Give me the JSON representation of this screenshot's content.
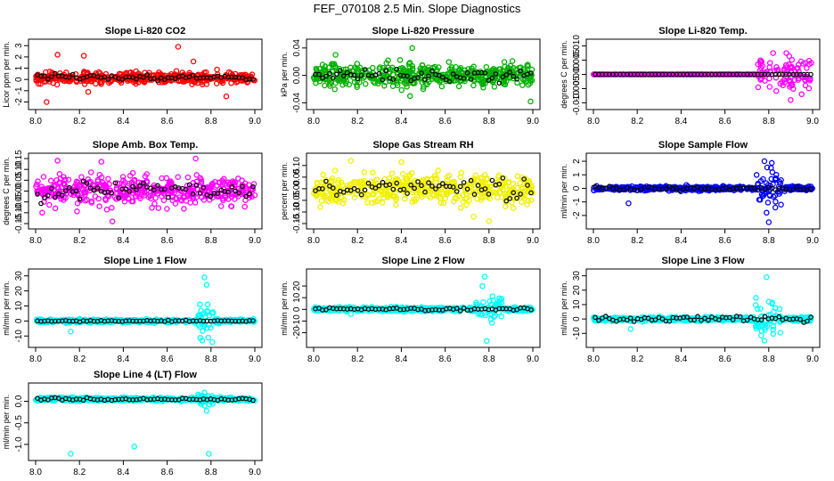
{
  "figure": {
    "title": "FEF_070108  2.5 Min. Slope Diagnostics"
  },
  "chart_data": [
    {
      "type": "scatter",
      "title": "Slope Li-820 CO2",
      "ylabel": "Licor ppm per min.",
      "xlim": [
        8.0,
        9.0
      ],
      "ylim": [
        -2.2,
        3.1
      ],
      "x_ticks": [
        "8.0",
        "8.2",
        "8.4",
        "8.6",
        "8.8",
        "9.0"
      ],
      "y_ticks": [
        -2,
        -1,
        0,
        1,
        2,
        3
      ],
      "y_tick_labels": [
        "-2",
        "-1",
        "0",
        "1",
        "2",
        "3"
      ],
      "series": [
        {
          "name": "all",
          "color": "#ff0000",
          "base": 0.15,
          "spread": 0.35,
          "outliers": [
            [
              8.1,
              2.2
            ],
            [
              8.72,
              1.6
            ],
            [
              8.65,
              2.9
            ],
            [
              8.05,
              -2.0
            ],
            [
              8.24,
              -1.1
            ],
            [
              8.22,
              2.1
            ],
            [
              8.87,
              -1.5
            ]
          ],
          "burst": null
        },
        {
          "name": "subset",
          "color": "#000000",
          "base": 0.15,
          "spread": 0.2
        }
      ]
    },
    {
      "type": "scatter",
      "title": "Slope Li-820 Pressure",
      "ylabel": "kPa per min.",
      "xlim": [
        8.0,
        9.0
      ],
      "ylim": [
        -0.042,
        0.045
      ],
      "x_ticks": [
        "8.0",
        "8.2",
        "8.4",
        "8.6",
        "8.8",
        "9.0"
      ],
      "y_ticks": [
        -0.04,
        0.0,
        0.04
      ],
      "y_tick_labels": [
        "-0.04",
        "0.00",
        "0.04"
      ],
      "series": [
        {
          "name": "all",
          "color": "#00b000",
          "base": 0.0,
          "spread": 0.011,
          "outliers": [
            [
              8.45,
              0.04
            ],
            [
              8.44,
              -0.03
            ],
            [
              8.99,
              -0.038
            ],
            [
              8.34,
              0.022
            ],
            [
              8.1,
              0.03
            ],
            [
              8.5,
              -0.02
            ]
          ],
          "burst": null
        },
        {
          "name": "subset",
          "color": "#000000",
          "base": 0.0,
          "spread": 0.006
        }
      ]
    },
    {
      "type": "scatter",
      "title": "Slope Li-820 Temp.",
      "ylabel": "degrees C per min.",
      "xlim": [
        8.0,
        9.0
      ],
      "ylim": [
        -0.0105,
        0.0105
      ],
      "x_ticks": [
        "8.0",
        "8.2",
        "8.4",
        "8.6",
        "8.8",
        "9.0"
      ],
      "y_ticks": [
        -0.01,
        -0.005,
        0.0,
        0.005,
        0.01
      ],
      "y_tick_labels": [
        "-0.010",
        "-0.005",
        "0.000",
        "0.005",
        "0.010"
      ],
      "series": [
        {
          "name": "all",
          "color": "#ff00ff",
          "base": 0.0,
          "spread": 0.0,
          "outliers": [
            [
              8.9,
              -0.009
            ],
            [
              8.82,
              0.0075
            ],
            [
              8.88,
              0.0075
            ],
            [
              8.95,
              -0.007
            ]
          ],
          "burst": {
            "from": 8.75,
            "to": 9.0,
            "spread": 0.004
          }
        },
        {
          "name": "subset",
          "color": "#000000",
          "base": 0.0,
          "spread": 0.0
        }
      ]
    },
    {
      "type": "scatter",
      "title": "Slope Amb. Box Temp.",
      "ylabel": "degrees C per min.",
      "xlim": [
        8.0,
        9.0
      ],
      "ylim": [
        -0.15,
        0.15
      ],
      "x_ticks": [
        "8.0",
        "8.2",
        "8.4",
        "8.6",
        "8.8",
        "9.0"
      ],
      "y_ticks": [
        -0.15,
        -0.1,
        -0.05,
        0.0,
        0.05,
        0.1,
        0.15
      ],
      "y_tick_labels": [
        "-0.15",
        "-0.10",
        "-0.05",
        "0.00",
        "0.05",
        "0.10",
        "0.15"
      ],
      "series": [
        {
          "name": "all",
          "color": "#ff00ff",
          "base": 0.0,
          "spread": 0.045,
          "outliers": [
            [
              8.35,
              -0.14
            ],
            [
              8.73,
              0.15
            ],
            [
              8.1,
              0.14
            ],
            [
              8.3,
              0.135
            ],
            [
              8.03,
              -0.1
            ]
          ],
          "burst": null
        },
        {
          "name": "subset",
          "color": "#000000",
          "base": 0.0,
          "spread": 0.03
        }
      ]
    },
    {
      "type": "scatter",
      "title": "Slope Gas Stream RH",
      "ylabel": "percent per min.",
      "xlim": [
        8.0,
        9.0
      ],
      "ylim": [
        -0.15,
        0.13
      ],
      "x_ticks": [
        "8.0",
        "8.2",
        "8.4",
        "8.6",
        "8.8",
        "9.0"
      ],
      "y_ticks": [
        -0.15,
        -0.1,
        -0.05,
        0.0,
        0.05,
        0.1
      ],
      "y_tick_labels": [
        "-0.15",
        "-0.10",
        "-0.05",
        "0.00",
        "0.05",
        "0.10"
      ],
      "series": [
        {
          "name": "all",
          "color": "#f0f000",
          "base": 0.0,
          "spread": 0.045,
          "outliers": [
            [
              8.8,
              -0.14
            ],
            [
              8.17,
              0.12
            ],
            [
              8.4,
              0.115
            ],
            [
              8.73,
              -0.12
            ]
          ],
          "burst": null
        },
        {
          "name": "subset",
          "color": "#000000",
          "base": 0.0,
          "spread": 0.035
        }
      ]
    },
    {
      "type": "scatter",
      "title": "Slope Sample Flow",
      "ylabel": "ml/min per min.",
      "xlim": [
        8.0,
        9.0
      ],
      "ylim": [
        -2.6,
        2.2
      ],
      "x_ticks": [
        "8.0",
        "8.2",
        "8.4",
        "8.6",
        "8.8",
        "9.0"
      ],
      "y_ticks": [
        -2,
        -1,
        0,
        1,
        2
      ],
      "y_tick_labels": [
        "-2",
        "-1",
        "0",
        "1",
        "2"
      ],
      "series": [
        {
          "name": "all",
          "color": "#0000ff",
          "base": 0.0,
          "spread": 0.12,
          "outliers": [
            [
              8.16,
              -1.1
            ],
            [
              8.78,
              2.0
            ],
            [
              8.8,
              -2.5
            ],
            [
              8.81,
              1.5
            ],
            [
              8.79,
              -1.8
            ]
          ],
          "burst": {
            "from": 8.74,
            "to": 8.86,
            "spread": 0.9
          }
        },
        {
          "name": "subset",
          "color": "#000000",
          "base": 0.0,
          "spread": 0.1
        }
      ]
    },
    {
      "type": "scatter",
      "title": "Slope Line 1 Flow",
      "ylabel": "ml/min per min.",
      "xlim": [
        8.0,
        9.0
      ],
      "ylim": [
        -14,
        31
      ],
      "x_ticks": [
        "8.0",
        "8.2",
        "8.4",
        "8.6",
        "8.8",
        "9.0"
      ],
      "y_ticks": [
        -10,
        0,
        10,
        20,
        30
      ],
      "y_tick_labels": [
        "-10",
        "0",
        "10",
        "20",
        "30"
      ],
      "series": [
        {
          "name": "all",
          "color": "#00ffff",
          "base": 0.0,
          "spread": 0.8,
          "outliers": [
            [
              8.77,
              29
            ],
            [
              8.78,
              24
            ],
            [
              8.76,
              -13
            ],
            [
              8.16,
              -7
            ]
          ],
          "burst": {
            "from": 8.74,
            "to": 8.82,
            "spread": 9
          }
        },
        {
          "name": "subset",
          "color": "#000000",
          "base": 0.0,
          "spread": 0.3
        }
      ]
    },
    {
      "type": "scatter",
      "title": "Slope Line 2 Flow",
      "ylabel": "ml/min per min.",
      "xlim": [
        8.0,
        9.0
      ],
      "ylim": [
        -28,
        30
      ],
      "x_ticks": [
        "8.0",
        "8.2",
        "8.4",
        "8.6",
        "8.8",
        "9.0"
      ],
      "y_ticks": [
        -20,
        -10,
        0,
        10,
        20
      ],
      "y_tick_labels": [
        "-20",
        "-10",
        "0",
        "10",
        "20"
      ],
      "series": [
        {
          "name": "all",
          "color": "#00ffff",
          "base": 0.0,
          "spread": 1.2,
          "outliers": [
            [
              8.78,
              28
            ],
            [
              8.79,
              -27
            ],
            [
              8.17,
              -4
            ],
            [
              8.77,
              20
            ]
          ],
          "burst": {
            "from": 8.74,
            "to": 8.86,
            "spread": 8
          }
        },
        {
          "name": "subset",
          "color": "#000000",
          "base": 0.0,
          "spread": 1.0
        }
      ]
    },
    {
      "type": "scatter",
      "title": "Slope Line 3 Flow",
      "ylabel": "ml/min per min.",
      "xlim": [
        8.0,
        9.0
      ],
      "ylim": [
        -16,
        31
      ],
      "x_ticks": [
        "8.0",
        "8.2",
        "8.4",
        "8.6",
        "8.8",
        "9.0"
      ],
      "y_ticks": [
        -10,
        0,
        10,
        20,
        30
      ],
      "y_tick_labels": [
        "-10",
        "0",
        "10",
        "20",
        "30"
      ],
      "series": [
        {
          "name": "all",
          "color": "#00ffff",
          "base": 0.0,
          "spread": 1.0,
          "outliers": [
            [
              8.79,
              29
            ],
            [
              8.78,
              -15
            ],
            [
              8.17,
              -7
            ],
            [
              8.8,
              12
            ]
          ],
          "burst": {
            "from": 8.74,
            "to": 8.86,
            "spread": 7
          }
        },
        {
          "name": "subset",
          "color": "#000000",
          "base": 0.0,
          "spread": 1.5
        }
      ]
    },
    {
      "type": "scatter",
      "title": "Slope Line 4 (LT) Flow",
      "ylabel": "ml/min per min.",
      "xlim": [
        8.0,
        9.0
      ],
      "ylim": [
        -1.25,
        0.3
      ],
      "x_ticks": [
        "8.0",
        "8.2",
        "8.4",
        "8.6",
        "8.8",
        "9.0"
      ],
      "y_ticks": [
        -1.0,
        -0.5,
        0.0
      ],
      "y_tick_labels": [
        "-1.0",
        "-0.5",
        "0.0"
      ],
      "series": [
        {
          "name": "all",
          "color": "#00ffff",
          "base": 0.05,
          "spread": 0.03,
          "outliers": [
            [
              8.16,
              -1.22
            ],
            [
              8.79,
              -1.22
            ],
            [
              8.45,
              -1.05
            ],
            [
              8.77,
              0.2
            ],
            [
              8.78,
              -0.22
            ]
          ],
          "burst": {
            "from": 8.74,
            "to": 8.82,
            "spread": 0.12
          }
        },
        {
          "name": "subset",
          "color": "#000000",
          "base": 0.05,
          "spread": 0.02
        }
      ]
    }
  ]
}
